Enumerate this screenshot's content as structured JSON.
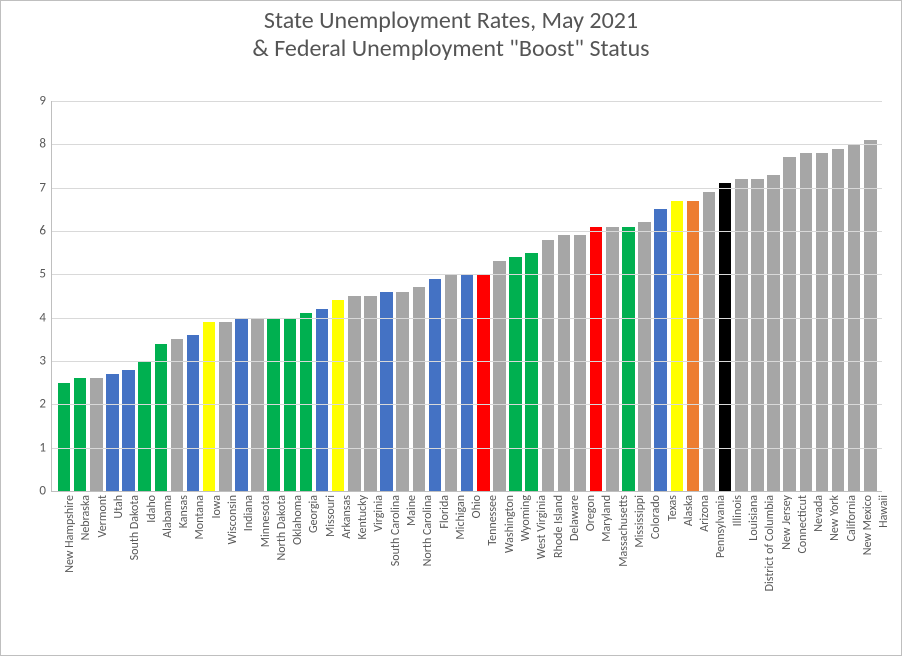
{
  "chart": {
    "type": "bar",
    "title_line1": "State Unemployment Rates, May 2021",
    "title_line2": "& Federal Unemployment \"Boost\" Status",
    "title_fontsize": 24,
    "title_color": "#595959",
    "background_color": "#ffffff",
    "border_color": "#bfbfbf",
    "grid_color": "#d9d9d9",
    "axis_label_color": "#595959",
    "axis_label_fontsize": 13,
    "x_label_fontsize": 12,
    "x_label_rotation_deg": -90,
    "ylim": [
      0,
      9
    ],
    "ytick_step": 1,
    "bar_width": 0.78,
    "palette": {
      "gray": "#a6a6a6",
      "green": "#00b050",
      "blue": "#4472c4",
      "yellow": "#ffff00",
      "red": "#ff0000",
      "orange": "#ed7d31",
      "black": "#000000"
    },
    "categories": [
      "New Hampshire",
      "Nebraska",
      "Vermont",
      "Utah",
      "South Dakota",
      "Idaho",
      "Alabama",
      "Kansas",
      "Montana",
      "Iowa",
      "Wisconsin",
      "Indiana",
      "Minnesota",
      "North Dakota",
      "Oklahoma",
      "Georgia",
      "Missouri",
      "Arkansas",
      "Kentucky",
      "Virginia",
      "South Carolina",
      "Maine",
      "North Carolina",
      "Florida",
      "Michigan",
      "Ohio",
      "Tennessee",
      "Washington",
      "Wyoming",
      "West Virginia",
      "Rhode Island",
      "Delaware",
      "Oregon",
      "Maryland",
      "Massachusetts",
      "Mississippi",
      "Colorado",
      "Texas",
      "Alaska",
      "Arizona",
      "Pennsylvania",
      "Illinois",
      "Louisiana",
      "District of Columbia",
      "New Jersey",
      "Connecticut",
      "Nevada",
      "New York",
      "California",
      "New Mexico",
      "Hawaii"
    ],
    "values": [
      2.5,
      2.6,
      2.6,
      2.7,
      2.8,
      3.0,
      3.4,
      3.5,
      3.6,
      3.9,
      3.9,
      4.0,
      4.0,
      4.0,
      4.0,
      4.1,
      4.2,
      4.4,
      4.5,
      4.5,
      4.6,
      4.6,
      4.7,
      4.9,
      5.0,
      5.0,
      5.0,
      5.3,
      5.4,
      5.5,
      5.8,
      5.9,
      5.9,
      6.1,
      6.1,
      6.1,
      6.2,
      6.5,
      6.7,
      6.7,
      6.9,
      7.1,
      7.2,
      7.2,
      7.3,
      7.7,
      7.8,
      7.8,
      7.9,
      8.0,
      8.1
    ],
    "color_keys": [
      "green",
      "green",
      "gray",
      "blue",
      "blue",
      "green",
      "green",
      "gray",
      "blue",
      "yellow",
      "gray",
      "blue",
      "gray",
      "green",
      "green",
      "green",
      "blue",
      "yellow",
      "gray",
      "gray",
      "blue",
      "gray",
      "gray",
      "blue",
      "gray",
      "blue",
      "red",
      "gray",
      "green",
      "green",
      "gray",
      "gray",
      "gray",
      "red",
      "gray",
      "green",
      "gray",
      "blue",
      "yellow",
      "orange",
      "gray",
      "black",
      "gray",
      "gray",
      "gray",
      "gray",
      "gray",
      "gray",
      "gray",
      "gray",
      "gray"
    ]
  }
}
